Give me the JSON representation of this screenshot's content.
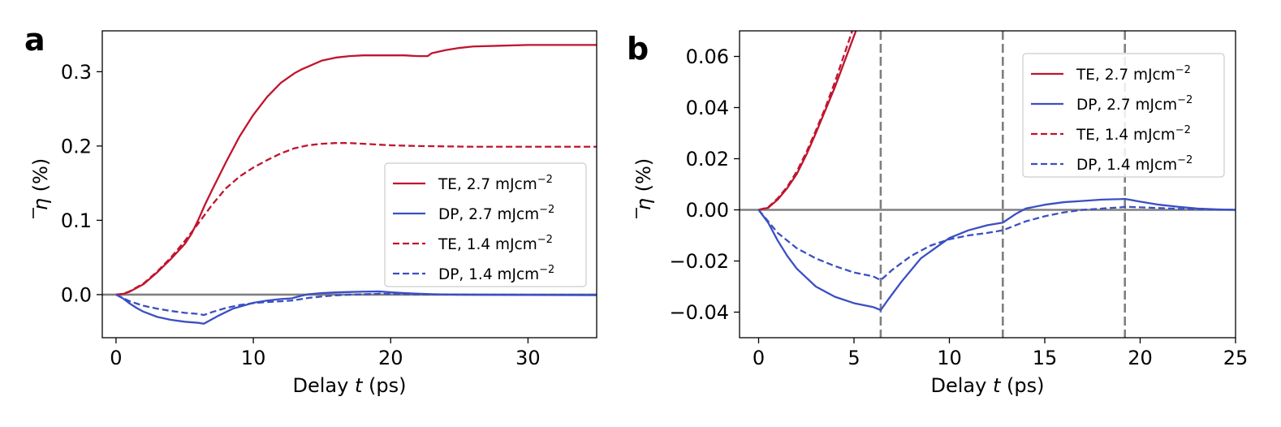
{
  "chart_data": [
    {
      "panel": "a",
      "type": "line",
      "xlabel_parts": [
        "Delay ",
        "t",
        " (ps)"
      ],
      "ylabel_parts": [
        "η",
        " (%)"
      ],
      "xlim": [
        -1,
        35
      ],
      "ylim": [
        -0.058,
        0.355
      ],
      "xticks": [
        0,
        10,
        20,
        30
      ],
      "xtick_labels": [
        "0",
        "10",
        "20",
        "30"
      ],
      "yticks": [
        0.0,
        0.1,
        0.2,
        0.3
      ],
      "ytick_labels": [
        "0.0",
        "0.1",
        "0.2",
        "0.3"
      ],
      "hline": 0,
      "vlines": [],
      "legend": {
        "position": "center-right"
      },
      "series": [
        {
          "name": "TE, 2.7 mJcm",
          "sup": "−2",
          "color": "#c0152e",
          "dash": "solid",
          "x": [
            0,
            0.5,
            1,
            2,
            3,
            4,
            5,
            5.5,
            6,
            6.5,
            7,
            8,
            9,
            10,
            11,
            12,
            13,
            13.5,
            14,
            15,
            16,
            17,
            18,
            19,
            20,
            21,
            22,
            22.7,
            23,
            24,
            25,
            26,
            28,
            30,
            32,
            35
          ],
          "y": [
            0,
            0.0008,
            0.004,
            0.014,
            0.03,
            0.048,
            0.068,
            0.082,
            0.101,
            0.122,
            0.141,
            0.178,
            0.213,
            0.242,
            0.266,
            0.285,
            0.298,
            0.303,
            0.307,
            0.315,
            0.319,
            0.321,
            0.322,
            0.322,
            0.322,
            0.322,
            0.321,
            0.321,
            0.325,
            0.329,
            0.332,
            0.334,
            0.335,
            0.336,
            0.336,
            0.336
          ]
        },
        {
          "name": "DP, 2.7 mJcm",
          "sup": "−2",
          "color": "#3b4fc2",
          "dash": "solid",
          "x": [
            0,
            0.5,
            1,
            1.5,
            2,
            3,
            4,
            5,
            6,
            6.4,
            6.8,
            7.5,
            8.5,
            10,
            11,
            12,
            12.8,
            13.5,
            14,
            15,
            16,
            17,
            18,
            19,
            19.2,
            20,
            21,
            22,
            23,
            24,
            25,
            30,
            35
          ],
          "y": [
            0,
            -0.005,
            -0.012,
            -0.018,
            -0.023,
            -0.03,
            -0.034,
            -0.0365,
            -0.038,
            -0.0392,
            -0.035,
            -0.028,
            -0.019,
            -0.011,
            -0.008,
            -0.006,
            -0.005,
            -0.0015,
            0.0005,
            0.002,
            0.003,
            0.0035,
            0.004,
            0.0042,
            0.0043,
            0.0032,
            0.002,
            0.0012,
            0.0005,
            0.0002,
            0,
            -0.0005,
            -0.0007
          ]
        },
        {
          "name": "TE, 1.4 mJcm",
          "sup": "−2",
          "color": "#c0152e",
          "dash": "dashed",
          "x": [
            0,
            0.5,
            1,
            2,
            3,
            4,
            5,
            6,
            7,
            8,
            9,
            10,
            11,
            12,
            13,
            14,
            15,
            16,
            17,
            18,
            19,
            20,
            22,
            24,
            26,
            28,
            30,
            32,
            35
          ],
          "y": [
            0,
            0.001,
            0.0045,
            0.015,
            0.031,
            0.05,
            0.072,
            0.096,
            0.121,
            0.143,
            0.159,
            0.171,
            0.181,
            0.19,
            0.197,
            0.201,
            0.203,
            0.204,
            0.204,
            0.203,
            0.202,
            0.201,
            0.2,
            0.1995,
            0.199,
            0.199,
            0.199,
            0.199,
            0.199
          ]
        },
        {
          "name": "DP, 1.4 mJcm",
          "sup": "−2",
          "color": "#3b4fc2",
          "dash": "dashed",
          "x": [
            0,
            0.5,
            1,
            2,
            3,
            4,
            5,
            6,
            6.4,
            7,
            8,
            9,
            10,
            11,
            12,
            12.8,
            14,
            15,
            16,
            17,
            18,
            19,
            19.2,
            20,
            21,
            22,
            23,
            25,
            30,
            35
          ],
          "y": [
            0,
            -0.0045,
            -0.009,
            -0.015,
            -0.019,
            -0.022,
            -0.0245,
            -0.026,
            -0.0275,
            -0.0235,
            -0.018,
            -0.014,
            -0.0115,
            -0.01,
            -0.009,
            -0.008,
            -0.0045,
            -0.0025,
            -0.001,
            0,
            0.0005,
            0.001,
            0.0012,
            0.001,
            0.0007,
            0.0004,
            0.0002,
            0,
            -0.0002,
            -0.0003
          ]
        }
      ]
    },
    {
      "panel": "b",
      "type": "line",
      "xlabel_parts": [
        "Delay ",
        "t",
        " (ps)"
      ],
      "ylabel_parts": [
        "η",
        " (%)"
      ],
      "xlim": [
        -1,
        25
      ],
      "ylim": [
        -0.05,
        0.07
      ],
      "xticks": [
        0,
        5,
        10,
        15,
        20,
        25
      ],
      "xtick_labels": [
        "0",
        "5",
        "10",
        "15",
        "20",
        "25"
      ],
      "yticks": [
        -0.04,
        -0.02,
        0.0,
        0.02,
        0.04,
        0.06
      ],
      "ytick_labels": [
        "−0.04",
        "−0.02",
        "0.00",
        "0.02",
        "0.04",
        "0.06"
      ],
      "hline": 0,
      "vlines": [
        6.4,
        12.8,
        19.2
      ],
      "legend": {
        "position": "top-right"
      },
      "series": [
        {
          "name": "TE, 2.7 mJcm",
          "sup": "−2",
          "color": "#c0152e",
          "dash": "solid",
          "x": [
            0,
            0.5,
            1,
            1.5,
            2,
            2.5,
            3,
            3.5,
            4,
            4.5,
            5,
            5.3
          ],
          "y": [
            0,
            0.0008,
            0.004,
            0.0085,
            0.014,
            0.0215,
            0.03,
            0.039,
            0.048,
            0.058,
            0.068,
            0.074
          ]
        },
        {
          "name": "DP, 2.7 mJcm",
          "sup": "−2",
          "color": "#3b4fc2",
          "dash": "solid",
          "x": [
            0,
            0.5,
            1,
            1.5,
            2,
            3,
            4,
            5,
            6,
            6.4,
            6.8,
            7.5,
            8.5,
            10,
            11,
            12,
            12.8,
            13.5,
            14,
            15,
            16,
            17,
            18,
            19,
            19.2,
            20,
            21,
            22,
            23,
            24,
            25
          ],
          "y": [
            0,
            -0.005,
            -0.012,
            -0.018,
            -0.023,
            -0.03,
            -0.034,
            -0.0365,
            -0.038,
            -0.0392,
            -0.035,
            -0.028,
            -0.019,
            -0.011,
            -0.008,
            -0.006,
            -0.005,
            -0.0015,
            0.0005,
            0.002,
            0.003,
            0.0035,
            0.004,
            0.0042,
            0.0043,
            0.0032,
            0.002,
            0.0012,
            0.0005,
            0.0002,
            0
          ]
        },
        {
          "name": "TE, 1.4 mJcm",
          "sup": "−2",
          "color": "#c0152e",
          "dash": "dashed",
          "x": [
            0,
            0.5,
            1,
            1.5,
            2,
            2.5,
            3,
            3.5,
            4,
            4.5,
            5,
            5.2
          ],
          "y": [
            0,
            0.001,
            0.0045,
            0.009,
            0.015,
            0.0225,
            0.031,
            0.04,
            0.05,
            0.061,
            0.072,
            0.076
          ]
        },
        {
          "name": "DP, 1.4 mJcm",
          "sup": "−2",
          "color": "#3b4fc2",
          "dash": "dashed",
          "x": [
            0,
            0.5,
            1,
            2,
            3,
            4,
            5,
            6,
            6.4,
            7,
            8,
            9,
            10,
            11,
            12,
            12.8,
            14,
            15,
            16,
            17,
            18,
            19,
            19.2,
            20,
            21,
            22,
            23,
            25
          ],
          "y": [
            0,
            -0.0045,
            -0.009,
            -0.015,
            -0.019,
            -0.022,
            -0.0245,
            -0.026,
            -0.0275,
            -0.0235,
            -0.018,
            -0.014,
            -0.0115,
            -0.01,
            -0.009,
            -0.008,
            -0.0045,
            -0.0025,
            -0.001,
            0,
            0.0005,
            0.001,
            0.0012,
            0.001,
            0.0007,
            0.0004,
            0.0002,
            0
          ]
        }
      ]
    }
  ]
}
